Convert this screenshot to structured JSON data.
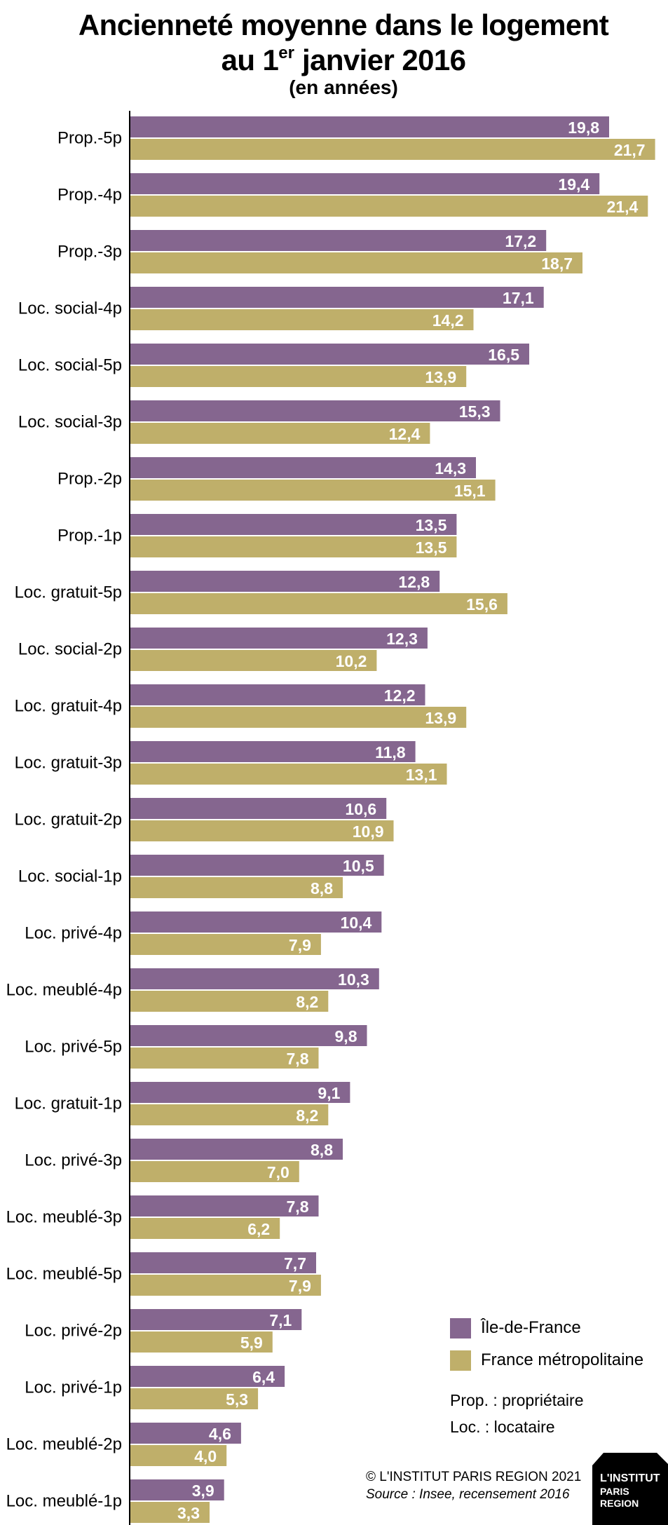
{
  "chart_data": {
    "type": "bar",
    "orientation": "horizontal",
    "title": "Ancienneté moyenne dans le logement",
    "title_line2": {
      "prefix": "au 1",
      "sup": "er",
      "suffix": " janvier 2016"
    },
    "subtitle": "(en années)",
    "categories": [
      "Prop.-5p",
      "Prop.-4p",
      "Prop.-3p",
      "Loc. social-4p",
      "Loc. social-5p",
      "Loc. social-3p",
      "Prop.-2p",
      "Prop.-1p",
      "Loc. gratuit-5p",
      "Loc. social-2p",
      "Loc. gratuit-4p",
      "Loc. gratuit-3p",
      "Loc. gratuit-2p",
      "Loc. social-1p",
      "Loc. privé-4p",
      "Loc. meublé-4p",
      "Loc. privé-5p",
      "Loc. gratuit-1p",
      "Loc. privé-3p",
      "Loc. meublé-3p",
      "Loc. meublé-5p",
      "Loc. privé-2p",
      "Loc. privé-1p",
      "Loc. meublé-2p",
      "Loc. meublé-1p"
    ],
    "series": [
      {
        "name": "Île-de-France",
        "color": "#85668f",
        "values": [
          19.8,
          19.4,
          17.2,
          17.1,
          16.5,
          15.3,
          14.3,
          13.5,
          12.8,
          12.3,
          12.2,
          11.8,
          10.6,
          10.5,
          10.4,
          10.3,
          9.8,
          9.1,
          8.8,
          7.8,
          7.7,
          7.1,
          6.4,
          4.6,
          3.9
        ]
      },
      {
        "name": "France métropolitaine",
        "color": "#bfaf6a",
        "values": [
          21.7,
          21.4,
          18.7,
          14.2,
          13.9,
          12.4,
          15.1,
          13.5,
          15.6,
          10.2,
          13.9,
          13.1,
          10.9,
          8.8,
          7.9,
          8.2,
          7.8,
          8.2,
          7.0,
          6.2,
          7.9,
          5.9,
          5.3,
          4.0,
          3.3
        ]
      }
    ],
    "xlim": [
      0,
      22
    ],
    "grid": false,
    "legend_position": "bottom-right",
    "annotations": [
      "Prop. : propriétaire",
      "Loc. : locataire"
    ]
  },
  "footer": {
    "credit": "© L'INSTITUT PARIS REGION 2021",
    "source": "Source : Insee, recensement 2016"
  },
  "logo": {
    "lines": [
      "L'INSTITUT",
      "PARIS",
      "REGION"
    ]
  }
}
